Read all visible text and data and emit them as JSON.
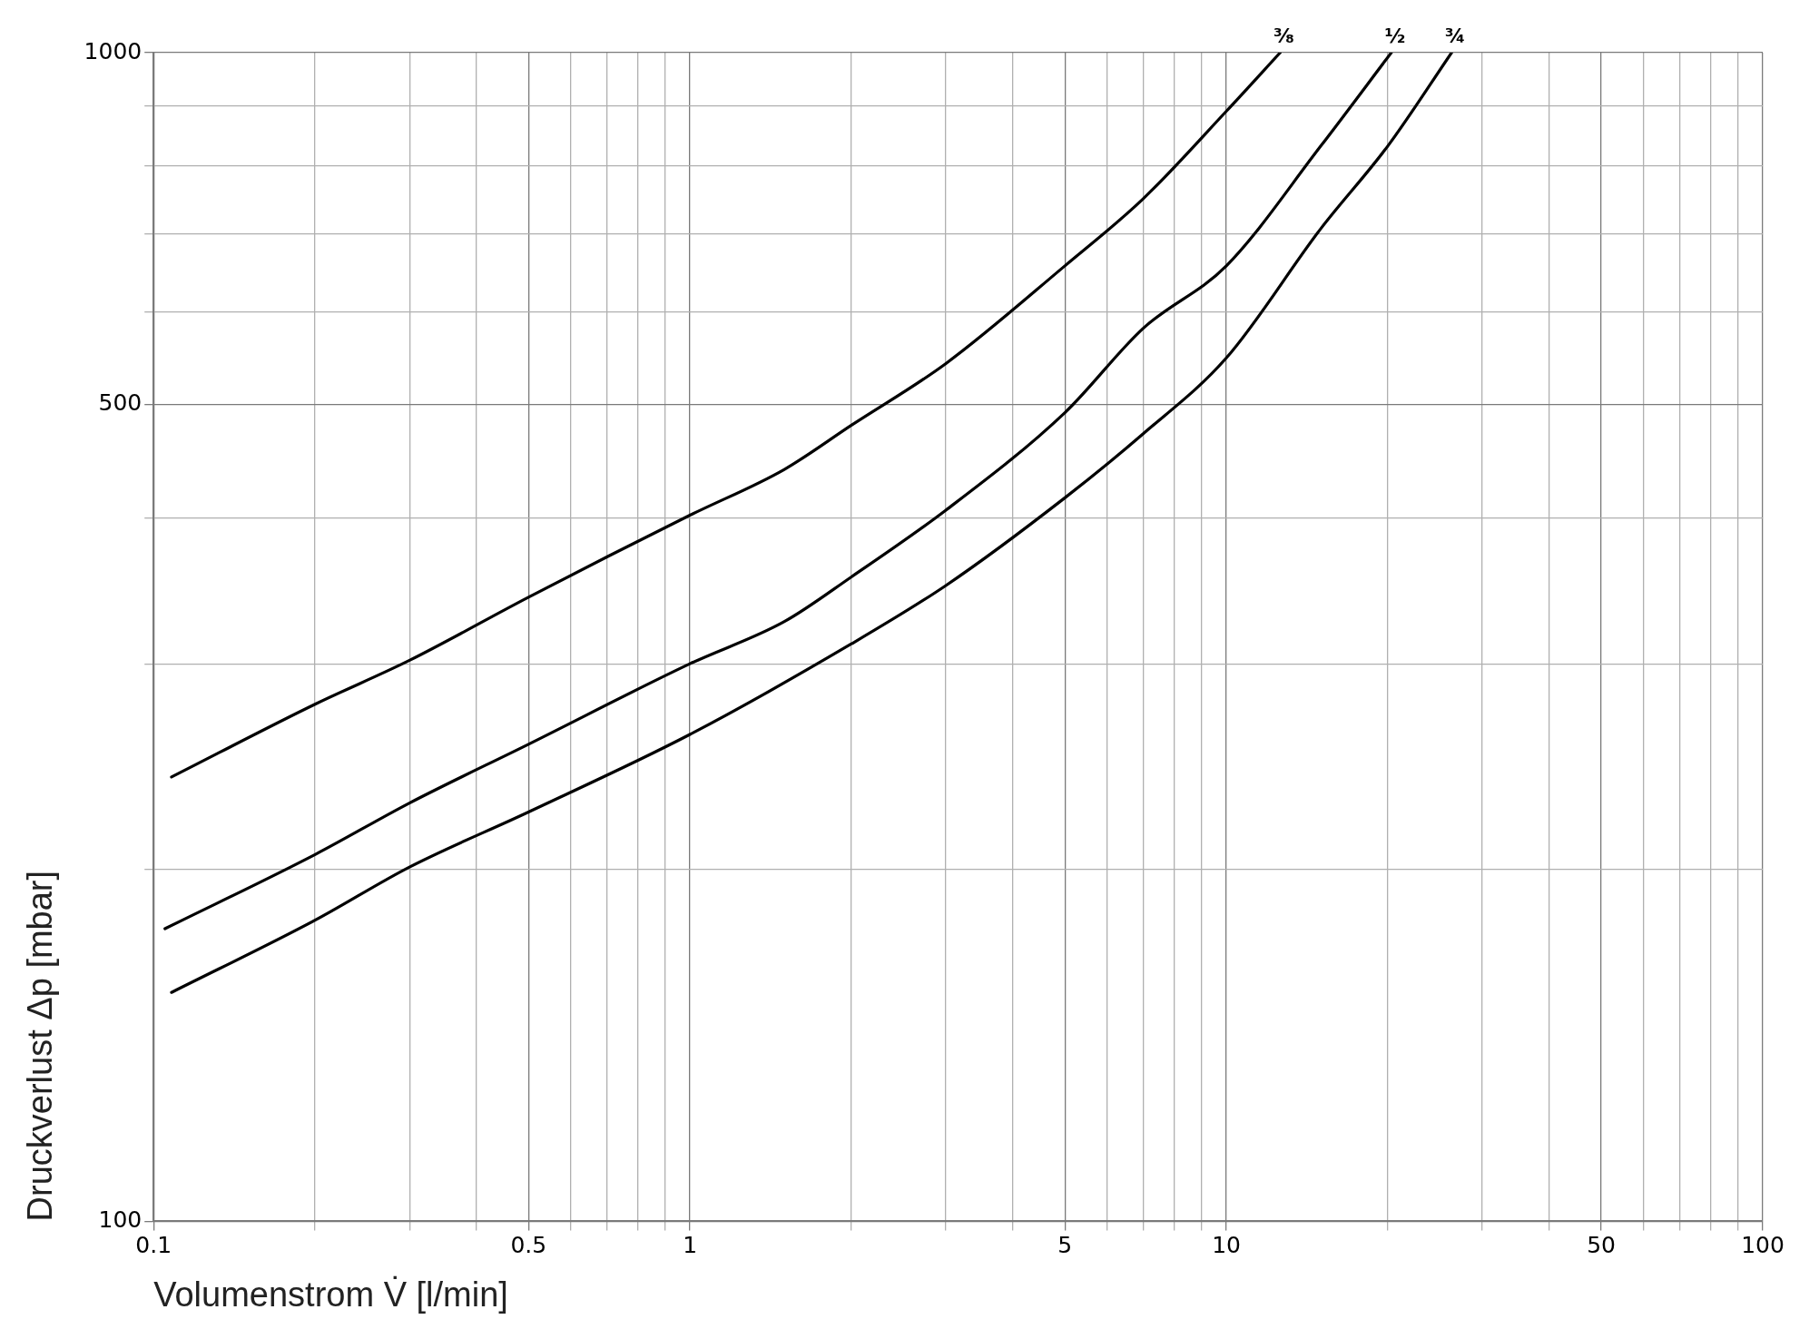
{
  "chart_data": {
    "type": "line",
    "xlabel": "Volumenstrom V̇ [l/min]",
    "ylabel": "Druckverlust Δp [mbar]",
    "log": "xy",
    "grid": true,
    "legend": false,
    "marker": "none",
    "line_style": "solid",
    "xlim": [
      0.1,
      100
    ],
    "ylim": [
      100,
      1000
    ],
    "xticks": [
      0.1,
      {
        "value": 0.2,
        "label": null
      },
      {
        "value": 0.3,
        "label": null
      },
      {
        "value": 0.4,
        "label": null
      },
      0.5,
      {
        "value": 0.6,
        "label": null
      },
      {
        "value": 0.7,
        "label": null
      },
      {
        "value": 0.8,
        "label": null
      },
      {
        "value": 0.9,
        "label": null
      },
      1,
      {
        "value": 2,
        "label": null
      },
      {
        "value": 3,
        "label": null
      },
      {
        "value": 4,
        "label": null
      },
      5,
      {
        "value": 6,
        "label": null
      },
      {
        "value": 7,
        "label": null
      },
      {
        "value": 8,
        "label": null
      },
      {
        "value": 9,
        "label": null
      },
      10,
      {
        "value": 20,
        "label": null
      },
      {
        "value": 30,
        "label": null
      },
      {
        "value": 40,
        "label": null
      },
      50,
      {
        "value": 60,
        "label": null
      },
      {
        "value": 70,
        "label": null
      },
      {
        "value": 80,
        "label": null
      },
      {
        "value": 90,
        "label": null
      },
      100
    ],
    "yticks": [
      100,
      {
        "value": 200,
        "label": null
      },
      {
        "value": 300,
        "label": null
      },
      {
        "value": 400,
        "label": null
      },
      500,
      {
        "value": 600,
        "label": null
      },
      {
        "value": 700,
        "label": null
      },
      {
        "value": 800,
        "label": null
      },
      {
        "value": 900,
        "label": null
      },
      1000
    ],
    "series": [
      {
        "name": "³⁄₈",
        "color": "#000000",
        "x": [
          0.108,
          0.2,
          0.3,
          0.5,
          1,
          1.5,
          2,
          3,
          5,
          7,
          10,
          12.6
        ],
        "values": [
          240,
          277,
          302,
          342,
          402,
          440,
          480,
          542,
          657,
          750,
          891,
          1000
        ]
      },
      {
        "name": "½",
        "color": "#000000",
        "x": [
          0.105,
          0.2,
          0.3,
          0.5,
          1,
          1.5,
          2,
          3,
          5,
          7,
          10,
          15,
          20.3
        ],
        "values": [
          178,
          206,
          228,
          256,
          300,
          326,
          356,
          406,
          492,
          581,
          657,
          832,
          1000
        ]
      },
      {
        "name": "¾",
        "color": "#000000",
        "x": [
          0.108,
          0.2,
          0.3,
          0.5,
          1,
          2,
          3,
          5,
          7,
          10,
          15,
          20,
          26.3
        ],
        "values": [
          157,
          181,
          201,
          224,
          261,
          312,
          350,
          416,
          472,
          548,
          707,
          832,
          1000
        ]
      }
    ]
  }
}
